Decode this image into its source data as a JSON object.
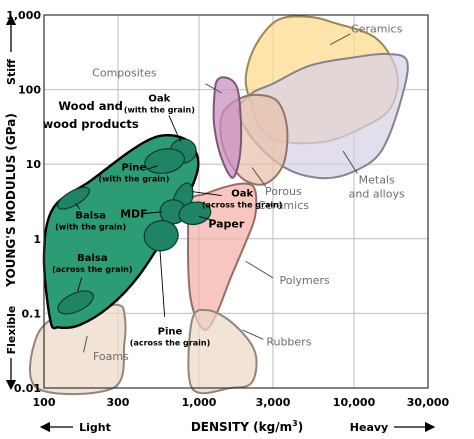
{
  "chart_data": {
    "type": "scatter",
    "xlabel": "DENSITY (kg/m³)",
    "ylabel": "YOUNG'S MODULUS (GPa)",
    "x_scale": "log",
    "y_scale": "log",
    "xlim": [
      100,
      30000
    ],
    "ylim": [
      0.01,
      1000
    ],
    "grid": true,
    "x_ticks": [
      {
        "value": 100,
        "label": "100"
      },
      {
        "value": 300,
        "label": "300"
      },
      {
        "value": 1000,
        "label": "1,000"
      },
      {
        "value": 3000,
        "label": "3,000"
      },
      {
        "value": 10000,
        "label": "10,000"
      },
      {
        "value": 30000,
        "label": "30,000"
      }
    ],
    "y_ticks": [
      {
        "value": 1000,
        "label": "1,000"
      },
      {
        "value": 100,
        "label": "100"
      },
      {
        "value": 10,
        "label": "10"
      },
      {
        "value": 1,
        "label": "1"
      },
      {
        "value": 0.1,
        "label": "0.1"
      },
      {
        "value": 0.01,
        "label": "0.01"
      }
    ],
    "x_left_label": "Light",
    "x_right_label": "Heavy",
    "y_top_label": "Stiff",
    "y_bottom_label": "Flexible",
    "regions": [
      {
        "name": "Ceramics",
        "color": "#fbd98b",
        "outline": [
          [
            2200,
            60
          ],
          [
            2000,
            140
          ],
          [
            2300,
            380
          ],
          [
            3200,
            850
          ],
          [
            5000,
            950
          ],
          [
            7500,
            780
          ],
          [
            14000,
            480
          ],
          [
            19000,
            160
          ],
          [
            17000,
            55
          ],
          [
            11000,
            30
          ],
          [
            6500,
            20
          ],
          [
            3500,
            20
          ],
          [
            2500,
            30
          ]
        ],
        "label": "Ceramics",
        "label_pos": [
          14000,
          660
        ]
      },
      {
        "name": "Metals and alloys",
        "color": "#d8d1e6",
        "outline": [
          [
            1800,
            55
          ],
          [
            2200,
            90
          ],
          [
            3000,
            120
          ],
          [
            5200,
            210
          ],
          [
            10000,
            270
          ],
          [
            16000,
            300
          ],
          [
            22000,
            240
          ],
          [
            20000,
            70
          ],
          [
            15000,
            15
          ],
          [
            10000,
            8
          ],
          [
            6500,
            6.5
          ],
          [
            4000,
            8
          ],
          [
            2700,
            14
          ],
          [
            2000,
            30
          ]
        ],
        "label": "Metals\nand alloys",
        "label_pos": [
          14000,
          5
        ]
      },
      {
        "name": "Porous Ceramics",
        "color": "#e9c0ab",
        "outline": [
          [
            1400,
            20
          ],
          [
            1400,
            45
          ],
          [
            1700,
            70
          ],
          [
            2300,
            85
          ],
          [
            3200,
            70
          ],
          [
            3700,
            30
          ],
          [
            3500,
            10
          ],
          [
            2700,
            5.5
          ],
          [
            2000,
            6
          ],
          [
            1600,
            10
          ]
        ],
        "label": "Porous\nCeramics",
        "label_pos": [
          3500,
          3.5
        ]
      },
      {
        "name": "Composites",
        "color": "#c98cc0",
        "outline": [
          [
            1250,
            70
          ],
          [
            1300,
            130
          ],
          [
            1500,
            145
          ],
          [
            1750,
            110
          ],
          [
            1850,
            50
          ],
          [
            1850,
            15
          ],
          [
            1700,
            7
          ],
          [
            1550,
            7.5
          ],
          [
            1350,
            15
          ],
          [
            1250,
            35
          ]
        ],
        "label": "Composites",
        "label_pos": [
          330,
          170
        ]
      },
      {
        "name": "Polymers",
        "color": "#f2b0a6",
        "outline": [
          [
            880,
            3.2
          ],
          [
            850,
            1
          ],
          [
            870,
            0.2
          ],
          [
            950,
            0.09
          ],
          [
            1100,
            0.06
          ],
          [
            1300,
            0.1
          ],
          [
            1600,
            0.3
          ],
          [
            2000,
            0.9
          ],
          [
            2300,
            2
          ],
          [
            2300,
            4.5
          ],
          [
            2000,
            5.5
          ],
          [
            1500,
            5
          ],
          [
            1100,
            4
          ]
        ],
        "label": "Polymers",
        "label_pos": [
          4800,
          0.28
        ]
      },
      {
        "name": "Rubbers",
        "color": "#ecd8c6",
        "outline": [
          [
            900,
            0.01
          ],
          [
            900,
            0.08
          ],
          [
            1150,
            0.11
          ],
          [
            1700,
            0.07
          ],
          [
            2300,
            0.03
          ],
          [
            2200,
            0.012
          ],
          [
            1600,
            0.01
          ]
        ],
        "label": "Rubbers",
        "label_pos": [
          3800,
          0.042
        ]
      },
      {
        "name": "Foams",
        "color": "#ecd8c6",
        "outline": [
          [
            90,
            0.01
          ],
          [
            90,
            0.05
          ],
          [
            140,
            0.11
          ],
          [
            210,
            0.12
          ],
          [
            300,
            0.13
          ],
          [
            330,
            0.1
          ],
          [
            330,
            0.04
          ],
          [
            280,
            0.01
          ]
        ],
        "label": "Foams",
        "label_pos": [
          270,
          0.027
        ]
      },
      {
        "name": "Wood and wood products",
        "color": "#2c9c76",
        "outline": [
          [
            110,
            0.08
          ],
          [
            100,
            0.6
          ],
          [
            115,
            2.6
          ],
          [
            200,
            6
          ],
          [
            360,
            15
          ],
          [
            520,
            23
          ],
          [
            700,
            24
          ],
          [
            880,
            19
          ],
          [
            990,
            10
          ],
          [
            860,
            4
          ],
          [
            620,
            1.2
          ],
          [
            400,
            0.3
          ],
          [
            260,
            0.12
          ],
          [
            170,
            0.07
          ],
          [
            125,
            0.065
          ]
        ],
        "label": "Wood and\nwood products",
        "label_pos": [
          200,
          46
        ]
      }
    ],
    "wood_subregions": [
      {
        "name": "Oak (with the grain)",
        "label": "Oak\n(with the grain)",
        "center": [
          790,
          15
        ],
        "rx": 13,
        "ry": 12,
        "rot": -10,
        "label_pos": [
          555,
          66
        ]
      },
      {
        "name": "Pine (with the grain)",
        "label": "Pine\n(with the grain)",
        "center": [
          600,
          11
        ],
        "rx": 20,
        "ry": 12,
        "rot": -10,
        "label_pos": [
          380,
          7.9
        ]
      },
      {
        "name": "Oak (across the grain)",
        "label": "Oak\n(across the grain)",
        "center": [
          780,
          3.2
        ],
        "rx": 9,
        "ry": 19,
        "rot": 20,
        "label_pos": [
          1900,
          3.5
        ]
      },
      {
        "name": "MDF",
        "label": "MDF",
        "center": [
          680,
          2.3
        ],
        "rx": 13,
        "ry": 12,
        "rot": 0,
        "label_pos": [
          380,
          2.2
        ]
      },
      {
        "name": "Paper",
        "label": "Paper",
        "center": [
          940,
          2.2
        ],
        "rx": 16,
        "ry": 11,
        "rot": -10,
        "label_pos": [
          1500,
          1.6
        ]
      },
      {
        "name": "Balsa (with the grain)",
        "label": "Balsa\n(with the grain)",
        "center": [
          155,
          3.5
        ],
        "rx": 18,
        "ry": 7,
        "rot": -30,
        "label_pos": [
          200,
          1.8
        ]
      },
      {
        "name": "Pine (across the grain)",
        "label": "Pine\n(across the grain)",
        "center": [
          570,
          1.1
        ],
        "rx": 17,
        "ry": 15,
        "rot": -10,
        "label_pos": [
          650,
          0.05
        ]
      },
      {
        "name": "Balsa (across the grain)",
        "label": "Balsa\n(across the grain)",
        "center": [
          160,
          0.14
        ],
        "rx": 19,
        "ry": 9,
        "rot": -25,
        "label_pos": [
          205,
          0.48
        ]
      }
    ]
  }
}
